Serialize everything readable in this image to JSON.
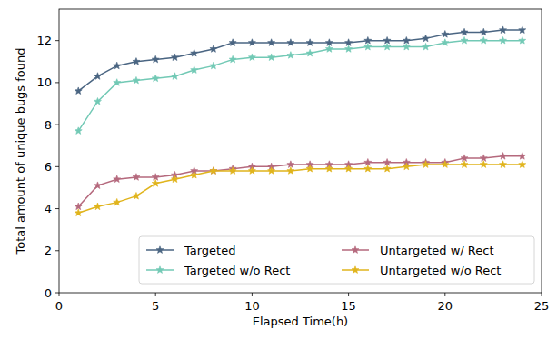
{
  "chart_data": {
    "type": "line",
    "x_label": "Elapsed Time(h)",
    "y_label": "Total amount of unique bugs found",
    "x": [
      1,
      2,
      3,
      4,
      5,
      6,
      7,
      8,
      9,
      10,
      11,
      12,
      13,
      14,
      15,
      16,
      17,
      18,
      19,
      20,
      21,
      22,
      23,
      24
    ],
    "series": [
      {
        "name": "Targeted",
        "color": "#4a6582",
        "marker": "star",
        "line_style": "solid",
        "values": [
          9.6,
          10.3,
          10.8,
          11.0,
          11.1,
          11.2,
          11.4,
          11.6,
          11.9,
          11.9,
          11.9,
          11.9,
          11.9,
          11.9,
          11.9,
          12.0,
          12.0,
          12.0,
          12.1,
          12.3,
          12.4,
          12.4,
          12.5,
          12.5
        ]
      },
      {
        "name": "Targeted w/o Rect",
        "color": "#72c9b5",
        "marker": "star",
        "line_style": "solid",
        "values": [
          7.7,
          9.1,
          10.0,
          10.1,
          10.2,
          10.3,
          10.6,
          10.8,
          11.1,
          11.2,
          11.2,
          11.3,
          11.4,
          11.6,
          11.6,
          11.7,
          11.7,
          11.7,
          11.7,
          11.9,
          12.0,
          12.0,
          12.0,
          12.0
        ]
      },
      {
        "name": "Untargeted w/ Rect",
        "color": "#b5697d",
        "marker": "star",
        "line_style": "solid",
        "values": [
          4.1,
          5.1,
          5.4,
          5.5,
          5.5,
          5.6,
          5.8,
          5.8,
          5.9,
          6.0,
          6.0,
          6.1,
          6.1,
          6.1,
          6.1,
          6.2,
          6.2,
          6.2,
          6.2,
          6.2,
          6.4,
          6.4,
          6.5,
          6.5
        ]
      },
      {
        "name": "Untargeted w/o Rect",
        "color": "#e0b41c",
        "marker": "star",
        "line_style": "solid",
        "values": [
          3.8,
          4.1,
          4.3,
          4.6,
          5.2,
          5.4,
          5.6,
          5.8,
          5.8,
          5.8,
          5.8,
          5.8,
          5.9,
          5.9,
          5.9,
          5.9,
          5.9,
          6.0,
          6.1,
          6.1,
          6.1,
          6.1,
          6.1,
          6.1
        ]
      }
    ],
    "xlim": [
      0,
      25
    ],
    "xticks": [
      0,
      5,
      10,
      15,
      20,
      25
    ],
    "ylim": [
      0,
      13.5
    ],
    "yticks": [
      0,
      2,
      4,
      6,
      8,
      10,
      12
    ],
    "grid": false,
    "legend": "lower right"
  }
}
